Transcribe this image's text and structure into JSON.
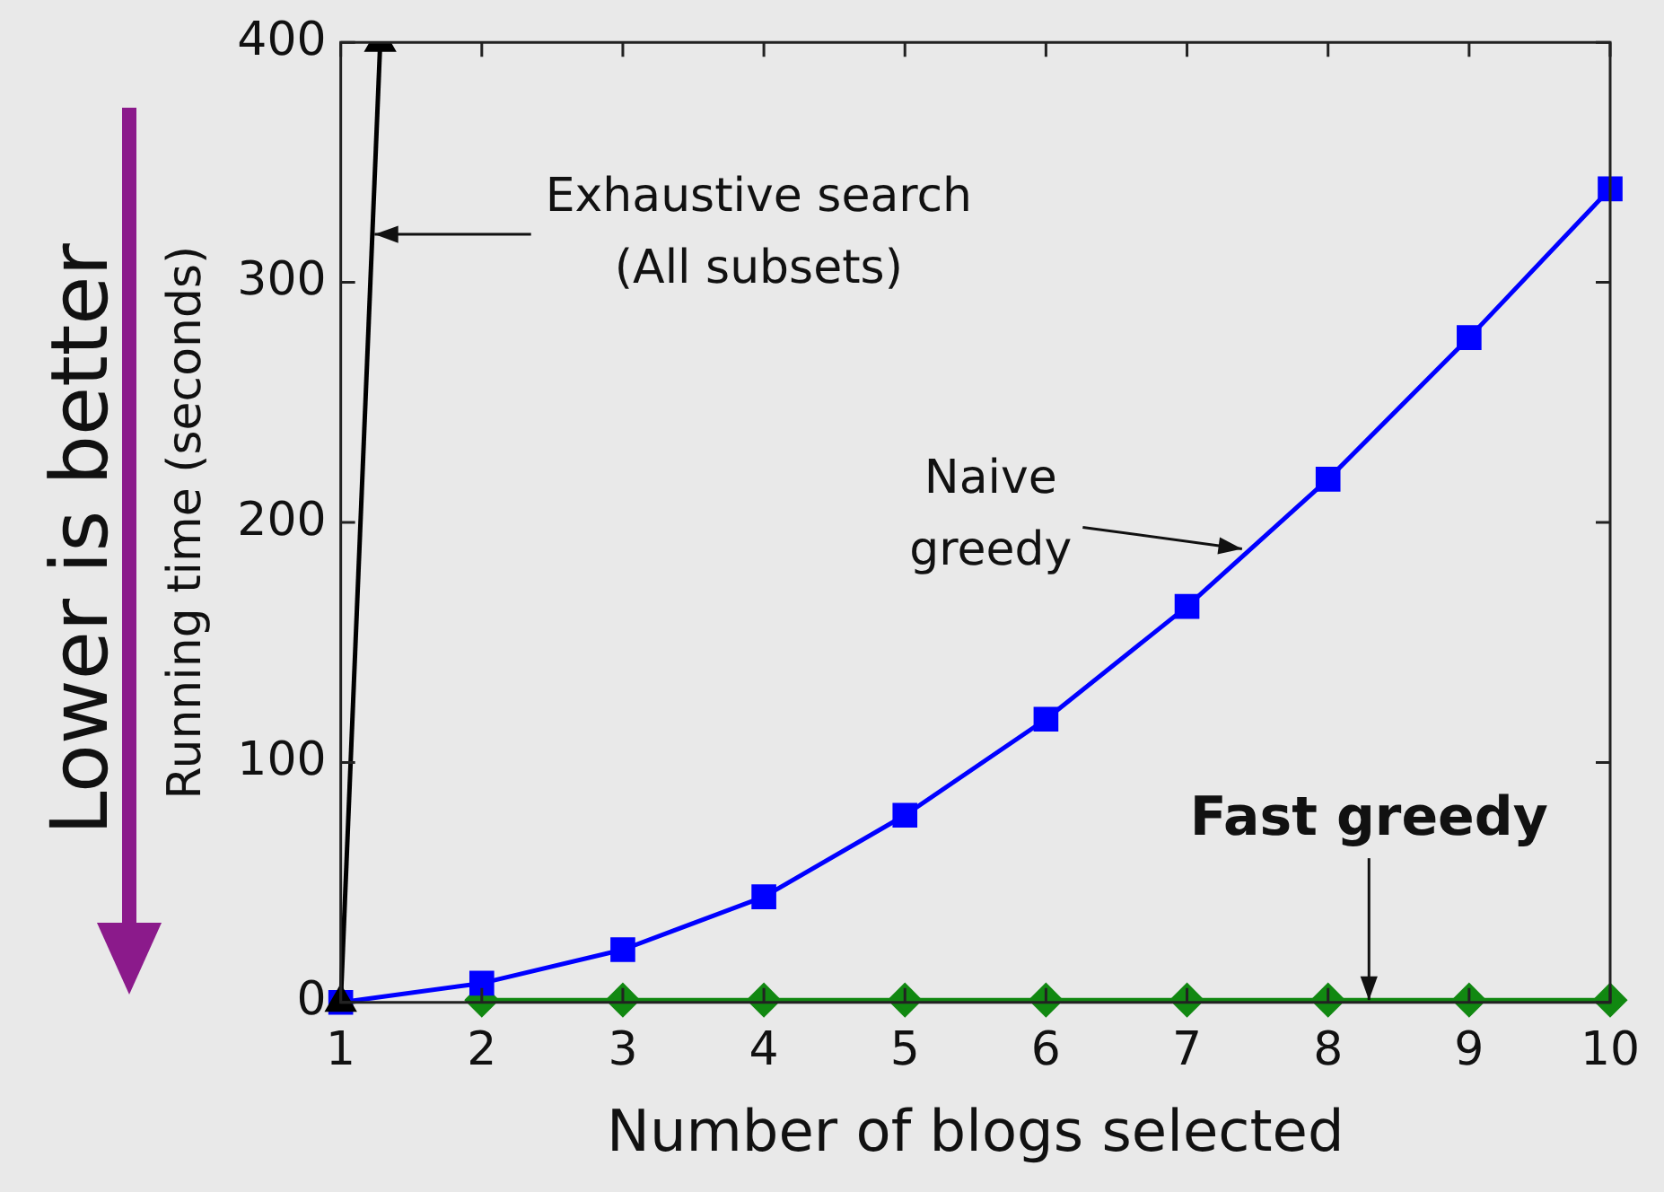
{
  "chart_data": {
    "type": "line",
    "xlabel": "Number of blogs selected",
    "ylabel": "Running time (seconds)",
    "xlim": [
      1,
      10
    ],
    "xticks": [
      1,
      2,
      3,
      4,
      5,
      6,
      7,
      8,
      9,
      10
    ],
    "ylim": [
      0,
      400
    ],
    "yticks": [
      0,
      100,
      200,
      300,
      400
    ],
    "grid": false,
    "legend": false,
    "line_style": "solid",
    "series": [
      {
        "color": "#000000",
        "marker": "triangle",
        "x": [
          1,
          1.28
        ],
        "values": [
          0,
          400
        ]
      },
      {
        "color": "#0000ff",
        "marker": "square",
        "x": [
          1,
          2,
          3,
          4,
          5,
          6,
          7,
          8,
          9,
          10
        ],
        "values": [
          0,
          8,
          22,
          44,
          78,
          118,
          165,
          218,
          277,
          339
        ]
      },
      {
        "color": "#118811",
        "marker": "diamond",
        "x": [
          2,
          3,
          4,
          5,
          6,
          7,
          8,
          9,
          10
        ],
        "values": [
          1,
          1,
          1,
          1,
          1,
          1,
          1,
          1,
          1
        ]
      }
    ],
    "annotations": [
      {
        "text": "Exhaustive search\n(All subsets)",
        "x": 1.24,
        "y": 320
      },
      {
        "text": "Naive\ngreedy",
        "x": 7.39,
        "y": 189
      },
      {
        "text": "Fast greedy",
        "x": 8.29,
        "y": 1
      },
      "Lower is better"
    ]
  }
}
